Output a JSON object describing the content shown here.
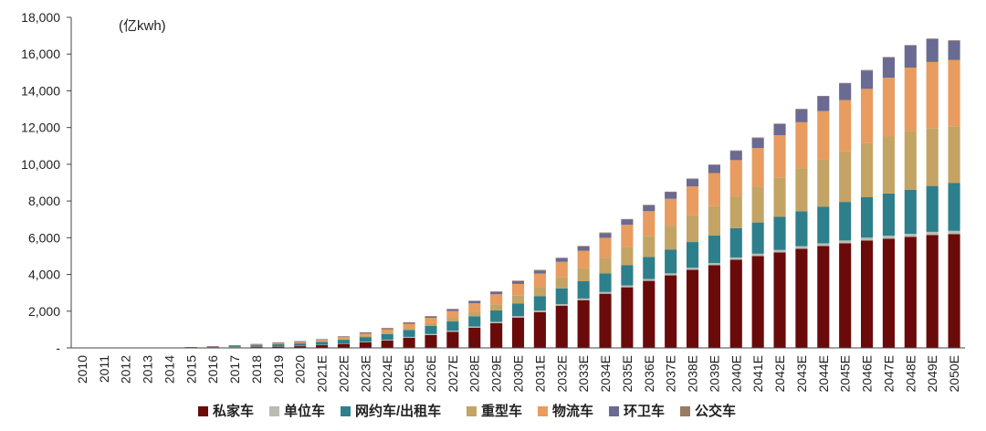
{
  "chart_data": {
    "type": "stacked-bar",
    "unit_label": "(亿kwh)",
    "y_ticks": [
      "-",
      "2,000",
      "4,000",
      "6,000",
      "8,000",
      "10,000",
      "12,000",
      "14,000",
      "16,000",
      "18,000"
    ],
    "ylim": [
      0,
      18000
    ],
    "categories": [
      "2010",
      "2011",
      "2012",
      "2013",
      "2014",
      "2015",
      "2016",
      "2017",
      "2018",
      "2019",
      "2020",
      "2021E",
      "2022E",
      "2023E",
      "2024E",
      "2025E",
      "2026E",
      "2027E",
      "2028E",
      "2029E",
      "2030E",
      "2031E",
      "2032E",
      "2033E",
      "2034E",
      "2035E",
      "2036E",
      "2037E",
      "2038E",
      "2039E",
      "2040E",
      "2041E",
      "2042E",
      "2043E",
      "2044E",
      "2045E",
      "2046E",
      "2047E",
      "2048E",
      "2049E",
      "2050E"
    ],
    "series": [
      {
        "name": "私家车",
        "color": "#6b0a0a",
        "values": [
          0,
          0,
          0,
          0,
          3,
          12,
          25,
          45,
          60,
          80,
          100,
          150,
          220,
          300,
          400,
          550,
          700,
          880,
          1100,
          1350,
          1650,
          1950,
          2300,
          2600,
          2950,
          3300,
          3650,
          3950,
          4250,
          4500,
          4800,
          5000,
          5200,
          5400,
          5550,
          5700,
          5850,
          5950,
          6050,
          6150,
          6200
        ]
      },
      {
        "name": "单位车",
        "color": "#b8bdb4",
        "values": [
          0,
          0,
          0,
          0,
          1,
          2,
          4,
          6,
          8,
          10,
          15,
          18,
          25,
          30,
          40,
          50,
          55,
          60,
          65,
          70,
          75,
          80,
          85,
          90,
          95,
          100,
          105,
          110,
          115,
          120,
          125,
          130,
          135,
          140,
          145,
          150,
          155,
          160,
          165,
          170,
          175
        ]
      },
      {
        "name": "网约车/出租车",
        "color": "#2e7f8c",
        "values": [
          0,
          0,
          0,
          0,
          5,
          20,
          35,
          50,
          80,
          110,
          130,
          160,
          200,
          260,
          320,
          380,
          440,
          500,
          560,
          620,
          700,
          780,
          860,
          940,
          1020,
          1100,
          1200,
          1300,
          1400,
          1500,
          1600,
          1700,
          1800,
          1900,
          2000,
          2100,
          2200,
          2300,
          2400,
          2500,
          2600
        ]
      },
      {
        "name": "重型车",
        "color": "#c4a464",
        "values": [
          0,
          0,
          0,
          0,
          0,
          3,
          8,
          12,
          15,
          20,
          25,
          30,
          40,
          60,
          80,
          110,
          150,
          200,
          260,
          340,
          420,
          500,
          600,
          700,
          850,
          1000,
          1150,
          1300,
          1450,
          1600,
          1750,
          1950,
          2150,
          2350,
          2550,
          2750,
          2950,
          3100,
          3200,
          3150,
          3100
        ]
      },
      {
        "name": "物流车",
        "color": "#e89c60",
        "values": [
          0,
          0,
          0,
          0,
          0,
          5,
          10,
          15,
          30,
          50,
          60,
          80,
          100,
          130,
          170,
          220,
          290,
          370,
          450,
          540,
          640,
          740,
          840,
          960,
          1080,
          1200,
          1340,
          1460,
          1580,
          1800,
          1950,
          2100,
          2300,
          2500,
          2650,
          2800,
          2950,
          3200,
          3450,
          3600,
          3600
        ]
      },
      {
        "name": "环卫车",
        "color": "#6a6a92",
        "values": [
          0,
          0,
          0,
          0,
          0,
          1,
          2,
          3,
          5,
          10,
          15,
          20,
          25,
          40,
          50,
          60,
          70,
          90,
          110,
          130,
          150,
          170,
          200,
          230,
          260,
          290,
          320,
          360,
          400,
          440,
          500,
          550,
          600,
          700,
          800,
          900,
          1000,
          1100,
          1200,
          1250,
          1050
        ]
      },
      {
        "name": "公交车",
        "color": "#9a7a60",
        "values": [
          0,
          0,
          0,
          0,
          0,
          5,
          10,
          15,
          20,
          20,
          25,
          25,
          30,
          30,
          30,
          30,
          30,
          30,
          30,
          30,
          30,
          30,
          30,
          30,
          30,
          30,
          30,
          30,
          30,
          30,
          30,
          30,
          30,
          30,
          30,
          30,
          30,
          30,
          30,
          30,
          30
        ]
      }
    ],
    "legend_position": "bottom"
  }
}
